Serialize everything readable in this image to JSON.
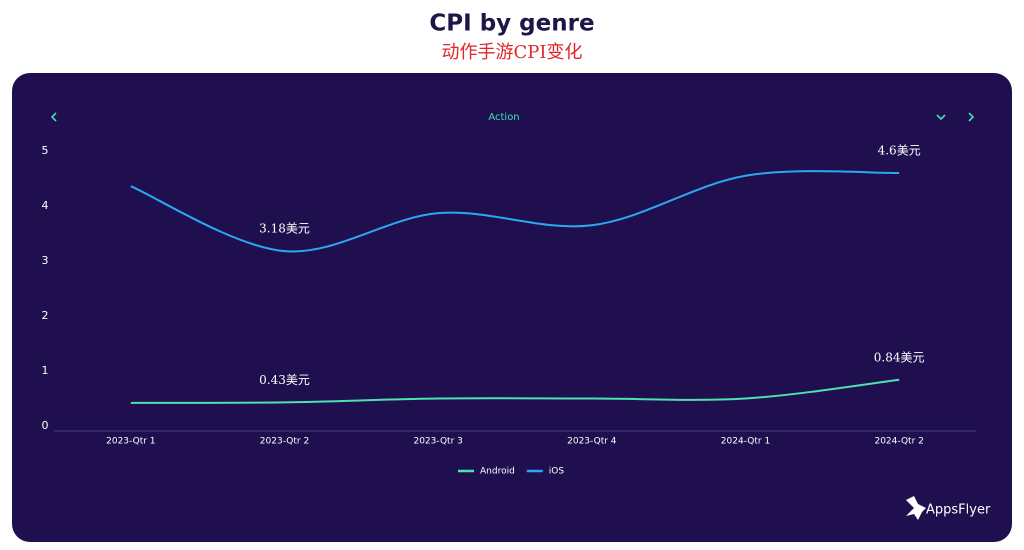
{
  "chart_data": {
    "type": "line",
    "title": "CPI by genre",
    "subtitle": "动作手游CPI变化",
    "selector": "Action",
    "brand": "AppsFlyer",
    "categories": [
      "2023-Qtr 1",
      "2023-Qtr 2",
      "2023-Qtr 3",
      "2023-Qtr 4",
      "2024-Qtr 1",
      "2024-Qtr 2"
    ],
    "series": [
      {
        "name": "Android",
        "color": "#4fe0b0",
        "values": [
          0.42,
          0.43,
          0.5,
          0.5,
          0.5,
          0.84
        ],
        "value_labels": [
          null,
          "0.43美元",
          null,
          null,
          null,
          "0.84美元"
        ]
      },
      {
        "name": "iOS",
        "color": "#2aa8f2",
        "values": [
          4.36,
          3.18,
          3.87,
          3.65,
          4.55,
          4.6
        ],
        "value_labels": [
          null,
          "3.18美元",
          null,
          null,
          null,
          "4.6美元"
        ]
      }
    ],
    "ylim": [
      0,
      5
    ],
    "yticks": [
      0,
      1,
      2,
      3,
      4,
      5
    ],
    "grid": false,
    "legend": "bottom"
  }
}
